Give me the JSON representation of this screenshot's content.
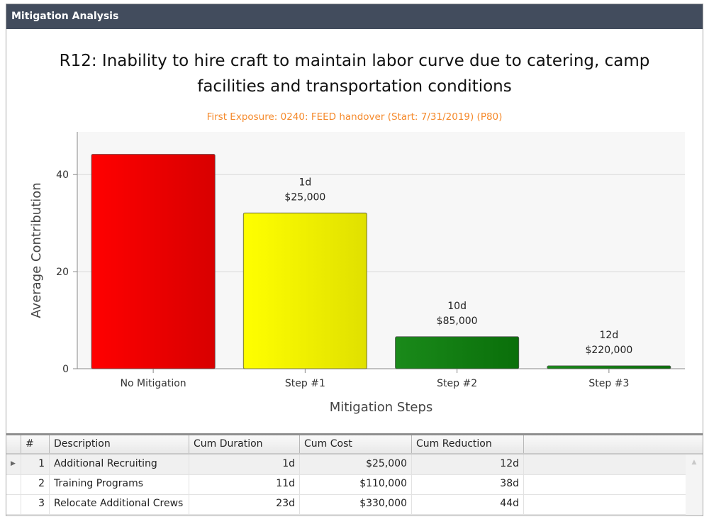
{
  "window": {
    "title": "Mitigation Analysis"
  },
  "chart_data": {
    "type": "bar",
    "title": "R12: Inability to hire craft to maintain labor curve due to catering, camp facilities and transportation conditions",
    "subtitle": "First Exposure: 0240: FEED handover (Start: 7/31/2019) (P80)",
    "xlabel": "Mitigation Steps",
    "ylabel": "Average Contribution",
    "categories": [
      "No Mitigation",
      "Step #1",
      "Step #2",
      "Step #3"
    ],
    "values": [
      44.2,
      32.1,
      6.6,
      0.6
    ],
    "bar_labels": [
      [
        "",
        ""
      ],
      [
        "1d",
        "$25,000"
      ],
      [
        "10d",
        "$85,000"
      ],
      [
        "12d",
        "$220,000"
      ]
    ],
    "colors": [
      "#ff0000",
      "#ffff00",
      "#1a8a1a",
      "#1a8a1a"
    ],
    "yticks": [
      0,
      20,
      40
    ],
    "ylim": [
      0,
      48.8
    ],
    "grid": true
  },
  "table": {
    "columns": [
      "#",
      "Description",
      "Cum Duration",
      "Cum Cost",
      "Cum Reduction"
    ],
    "rows": [
      [
        "1",
        "Additional Recruiting",
        "1d",
        "$25,000",
        "12d"
      ],
      [
        "2",
        "Training Programs",
        "11d",
        "$110,000",
        "38d"
      ],
      [
        "3",
        "Relocate Additional Crews",
        "23d",
        "$330,000",
        "44d"
      ]
    ]
  }
}
